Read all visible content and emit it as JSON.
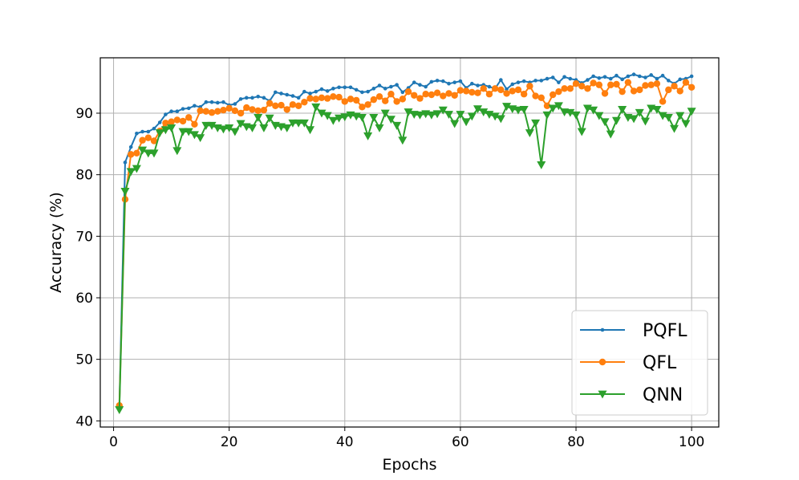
{
  "chart_data": {
    "type": "line",
    "xlabel": "Epochs",
    "ylabel": "Accuracy (%)",
    "xlim": [
      -2.3,
      104.7
    ],
    "ylim": [
      39.0,
      99.0
    ],
    "xticks": [
      0,
      20,
      40,
      60,
      80,
      100
    ],
    "yticks": [
      40,
      50,
      60,
      70,
      80,
      90
    ],
    "grid": true,
    "legend": "lower-right",
    "x": [
      1,
      2,
      3,
      4,
      5,
      6,
      7,
      8,
      9,
      10,
      11,
      12,
      13,
      14,
      15,
      16,
      17,
      18,
      19,
      20,
      21,
      22,
      23,
      24,
      25,
      26,
      27,
      28,
      29,
      30,
      31,
      32,
      33,
      34,
      35,
      36,
      37,
      38,
      39,
      40,
      41,
      42,
      43,
      44,
      45,
      46,
      47,
      48,
      49,
      50,
      51,
      52,
      53,
      54,
      55,
      56,
      57,
      58,
      59,
      60,
      61,
      62,
      63,
      64,
      65,
      66,
      67,
      68,
      69,
      70,
      71,
      72,
      73,
      74,
      75,
      76,
      77,
      78,
      79,
      80,
      81,
      82,
      83,
      84,
      85,
      86,
      87,
      88,
      89,
      90,
      91,
      92,
      93,
      94,
      95,
      96,
      97,
      98,
      99,
      100
    ],
    "series": [
      {
        "name": "PQFL",
        "color": "#1f77b4",
        "marker": "dot",
        "values": [
          42.5,
          82.0,
          84.5,
          86.7,
          87.0,
          87.0,
          87.5,
          88.5,
          89.8,
          90.3,
          90.3,
          90.7,
          90.8,
          91.2,
          91.0,
          91.8,
          91.8,
          91.7,
          91.8,
          91.3,
          91.5,
          92.3,
          92.5,
          92.5,
          92.7,
          92.5,
          92.0,
          93.4,
          93.2,
          93.0,
          92.8,
          92.5,
          93.5,
          93.2,
          93.5,
          93.9,
          93.6,
          94.0,
          94.2,
          94.2,
          94.2,
          93.8,
          93.4,
          93.5,
          94.0,
          94.5,
          94.0,
          94.3,
          94.6,
          93.4,
          94.1,
          95.0,
          94.6,
          94.3,
          95.1,
          95.3,
          95.2,
          94.8,
          95.0,
          95.2,
          94.1,
          94.8,
          94.5,
          94.6,
          94.3,
          94.0,
          95.4,
          93.9,
          94.7,
          95.0,
          95.2,
          95.0,
          95.3,
          95.3,
          95.6,
          95.8,
          95.0,
          95.9,
          95.6,
          95.4,
          94.9,
          95.4,
          96.0,
          95.7,
          95.9,
          95.6,
          96.1,
          95.5,
          96.0,
          96.3,
          96.0,
          95.8,
          96.2,
          95.6,
          96.1,
          95.3,
          94.8,
          95.5,
          95.6,
          96.0
        ]
      },
      {
        "name": "QFL",
        "color": "#ff7f0e",
        "marker": "circle",
        "values": [
          42.5,
          76.0,
          83.3,
          83.5,
          85.6,
          86.0,
          85.5,
          87.1,
          88.4,
          88.6,
          88.9,
          88.7,
          89.3,
          88.2,
          90.4,
          90.3,
          90.1,
          90.3,
          90.5,
          90.8,
          90.4,
          90.0,
          90.9,
          90.6,
          90.4,
          90.5,
          91.6,
          91.2,
          91.3,
          90.6,
          91.4,
          91.2,
          91.8,
          92.4,
          92.3,
          92.5,
          92.4,
          92.7,
          92.6,
          91.9,
          92.3,
          92.1,
          91.0,
          91.4,
          92.2,
          92.7,
          92.0,
          93.1,
          91.9,
          92.3,
          93.5,
          92.9,
          92.4,
          93.1,
          93.0,
          93.3,
          92.8,
          93.2,
          92.9,
          93.7,
          93.6,
          93.4,
          93.3,
          94.0,
          93.1,
          94.0,
          93.8,
          93.2,
          93.6,
          93.8,
          93.1,
          94.4,
          92.8,
          92.5,
          91.2,
          93.0,
          93.5,
          94.0,
          94.0,
          94.8,
          94.4,
          94.0,
          94.9,
          94.6,
          93.2,
          94.6,
          94.7,
          93.5,
          95.0,
          93.6,
          93.8,
          94.5,
          94.6,
          94.8,
          91.9,
          93.8,
          94.4,
          93.6,
          95.0,
          94.2
        ]
      },
      {
        "name": "QNN",
        "color": "#2ca02c",
        "marker": "triangle-down",
        "values": [
          41.8,
          77.3,
          80.5,
          81.0,
          84.0,
          83.5,
          83.5,
          86.8,
          87.3,
          87.6,
          83.9,
          87.0,
          87.0,
          86.5,
          86.0,
          88.0,
          88.0,
          87.6,
          87.4,
          87.6,
          87.0,
          88.3,
          87.8,
          87.6,
          89.3,
          87.6,
          89.2,
          88.0,
          87.8,
          87.6,
          88.4,
          88.4,
          88.4,
          87.3,
          91.0,
          90.0,
          89.6,
          88.8,
          89.2,
          89.4,
          89.7,
          89.5,
          89.3,
          86.3,
          89.3,
          87.6,
          90.0,
          89.0,
          88.0,
          85.6,
          90.2,
          89.8,
          89.7,
          89.9,
          89.7,
          89.9,
          90.5,
          89.8,
          88.3,
          89.8,
          88.6,
          89.5,
          90.7,
          90.2,
          89.8,
          89.5,
          89.1,
          91.1,
          90.7,
          90.5,
          90.6,
          86.8,
          88.4,
          81.6,
          89.7,
          90.8,
          91.2,
          90.2,
          90.1,
          89.7,
          87.0,
          90.8,
          90.5,
          89.6,
          88.6,
          86.6,
          88.8,
          90.6,
          89.3,
          89.1,
          90.1,
          88.7,
          90.8,
          90.6,
          89.6,
          89.3,
          87.5,
          89.6,
          88.3,
          90.3
        ]
      }
    ]
  }
}
